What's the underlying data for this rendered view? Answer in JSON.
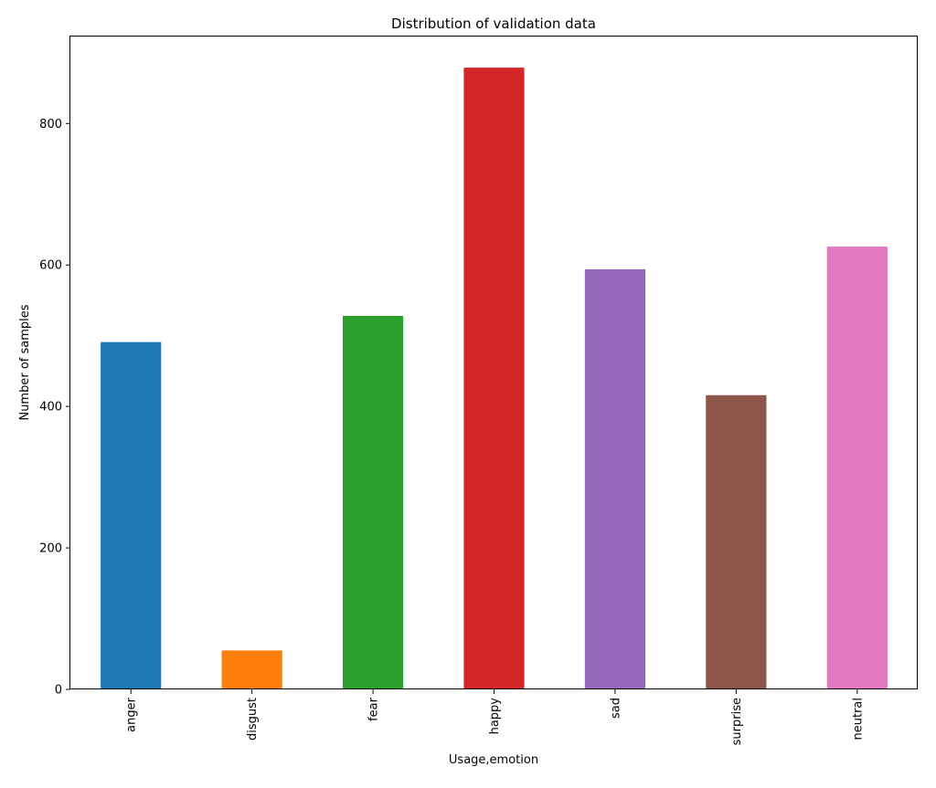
{
  "chart_data": {
    "type": "bar",
    "title": "Distribution of validation data",
    "xlabel": "Usage,emotion",
    "ylabel": "Number of samples",
    "categories": [
      "anger",
      "disgust",
      "fear",
      "happy",
      "sad",
      "surprise",
      "neutral"
    ],
    "values": [
      491,
      55,
      528,
      879,
      594,
      416,
      626
    ],
    "colors": [
      "#1f77b4",
      "#ff7f0e",
      "#2ca02c",
      "#d62728",
      "#9467bd",
      "#8c564b",
      "#e377c2"
    ],
    "ylim": [
      0,
      923
    ],
    "yticks": [
      0,
      200,
      400,
      600,
      800
    ],
    "grid": false,
    "legend": "none"
  }
}
